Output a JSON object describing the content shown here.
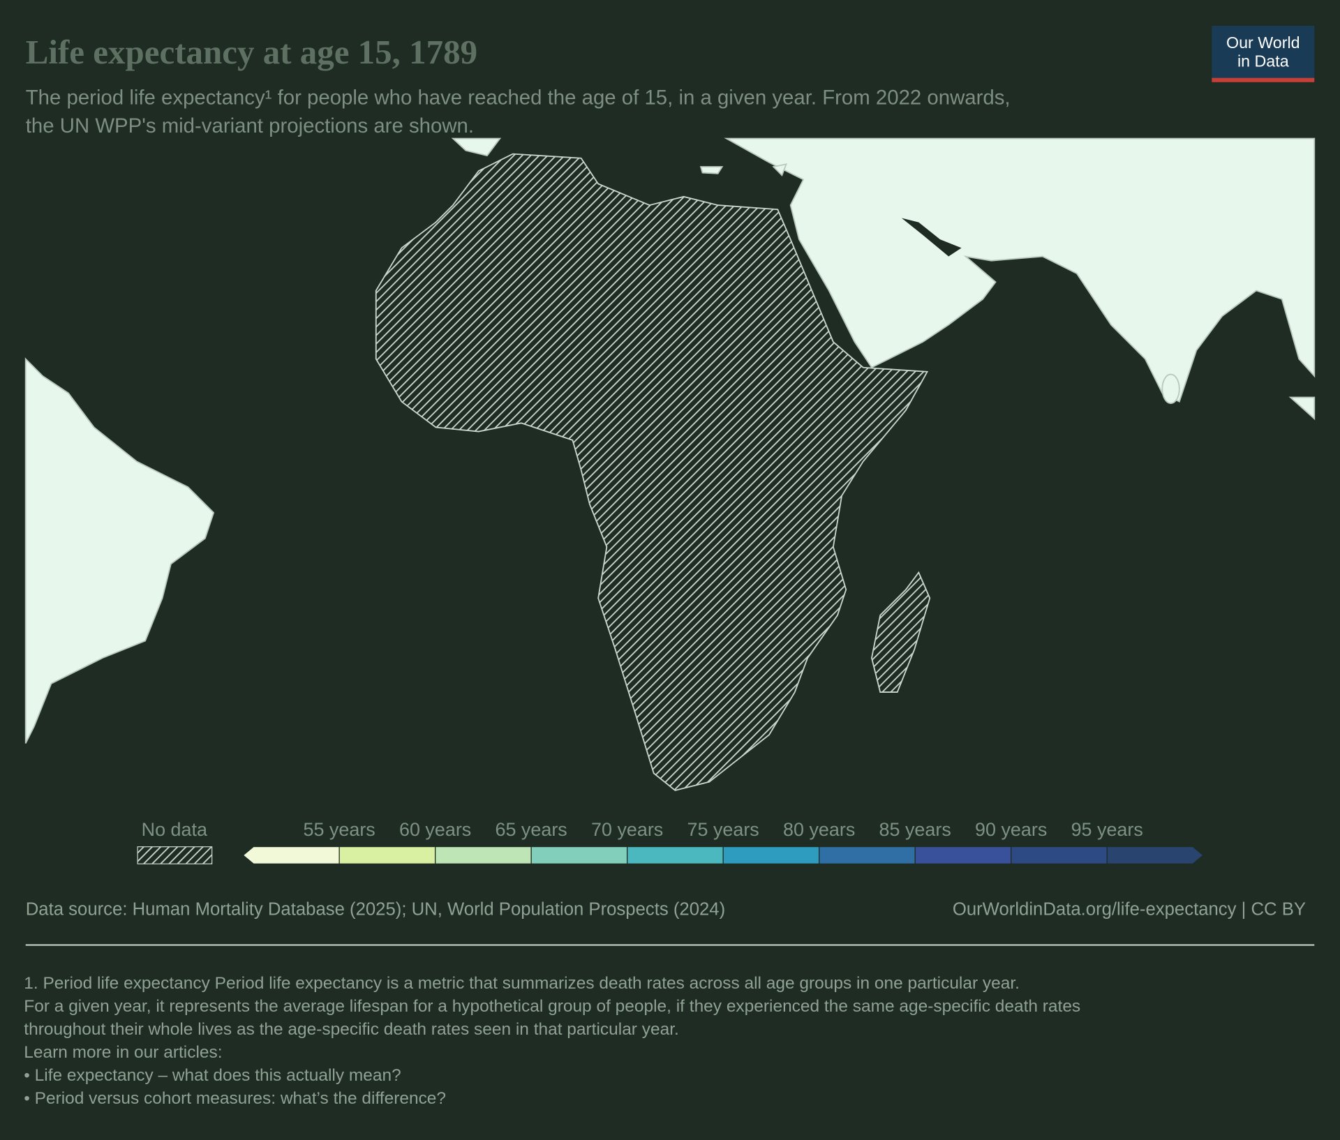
{
  "header": {
    "title": "Life expectancy at age 15, 1789",
    "subtitle": [
      "The period life expectancy¹ for people who have reached the age of 15, in a given year. From 2022 onwards,",
      "the UN WPP's mid-variant projections are shown."
    ],
    "logo": [
      "Our World",
      "in Data"
    ]
  },
  "legend": {
    "no_data": "No data",
    "ticks": [
      {
        "value": 55,
        "label": "55 years"
      },
      {
        "value": 60,
        "label": "60 years"
      },
      {
        "value": 65,
        "label": "65 years"
      },
      {
        "value": 70,
        "label": "70 years"
      },
      {
        "value": 75,
        "label": "75 years"
      },
      {
        "value": 80,
        "label": "80 years"
      },
      {
        "value": 85,
        "label": "85 years"
      },
      {
        "value": 90,
        "label": "90 years"
      },
      {
        "value": 95,
        "label": "95 years"
      }
    ],
    "colors": [
      "#f1f9d9",
      "#d9f0a3",
      "#bde5b5",
      "#82cfbc",
      "#4bb8c0",
      "#2d9cbf",
      "#2f6fa6",
      "#39509a",
      "#2e4a85",
      "#2a4470"
    ]
  },
  "footer": {
    "source": "Data source: Human Mortality Database (2025); UN, World Population Prospects (2024)",
    "url": "OurWorldinData.org/life-expectancy | CC BY"
  },
  "notes": [
    "1. Period life expectancy Period life expectancy is a metric that summarizes death rates across all age groups in one particular year.",
    "For a given year, it represents the average lifespan for a hypothetical group of people, if they experienced the same age-specific death rates",
    "throughout their whole lives as the age-specific death rates seen in that particular year.",
    "Learn more in our articles:",
    "• Life expectancy – what does this actually mean?",
    "• Period versus cohort measures: what’s the difference?"
  ]
}
